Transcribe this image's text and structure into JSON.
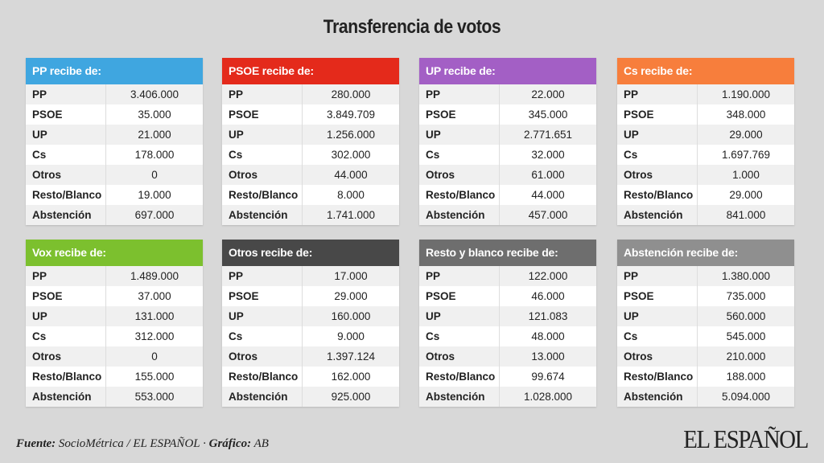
{
  "title": "Transferencia de votos",
  "row_labels": [
    "PP",
    "PSOE",
    "UP",
    "Cs",
    "Otros",
    "Resto/Blanco",
    "Abstención"
  ],
  "tables": [
    {
      "header": "PP recibe de:",
      "color": "#3fa6e0",
      "values": [
        "3.406.000",
        "35.000",
        "21.000",
        "178.000",
        "0",
        "19.000",
        "697.000"
      ]
    },
    {
      "header": "PSOE recibe de:",
      "color": "#e42a1b",
      "values": [
        "280.000",
        "3.849.709",
        "1.256.000",
        "302.000",
        "44.000",
        "8.000",
        "1.741.000"
      ]
    },
    {
      "header": "UP recibe de:",
      "color": "#a35fc5",
      "values": [
        "22.000",
        "345.000",
        "2.771.651",
        "32.000",
        "61.000",
        "44.000",
        "457.000"
      ]
    },
    {
      "header": "Cs recibe de:",
      "color": "#f77e3c",
      "values": [
        "1.190.000",
        "348.000",
        "29.000",
        "1.697.769",
        "1.000",
        "29.000",
        "841.000"
      ]
    },
    {
      "header": "Vox recibe de:",
      "color": "#7cc02e",
      "values": [
        "1.489.000",
        "37.000",
        "131.000",
        "312.000",
        "0",
        "155.000",
        "553.000"
      ]
    },
    {
      "header": "Otros recibe de:",
      "color": "#484848",
      "values": [
        "17.000",
        "29.000",
        "160.000",
        "9.000",
        "1.397.124",
        "162.000",
        "925.000"
      ]
    },
    {
      "header": "Resto y blanco recibe de:",
      "color": "#6e6e6e",
      "values": [
        "122.000",
        "46.000",
        "121.083",
        "48.000",
        "13.000",
        "99.674",
        "1.028.000"
      ]
    },
    {
      "header": "Abstención recibe de:",
      "color": "#8f8f8f",
      "values": [
        "1.380.000",
        "735.000",
        "560.000",
        "545.000",
        "210.000",
        "188.000",
        "5.094.000"
      ]
    }
  ],
  "footer": {
    "source_label": "Fuente:",
    "source": "SocioMétrica / EL ESPAÑOL",
    "sep": " · ",
    "graphic_label": "Gráfico:",
    "graphic": "AB"
  },
  "logo": "EL ESPAÑOL"
}
